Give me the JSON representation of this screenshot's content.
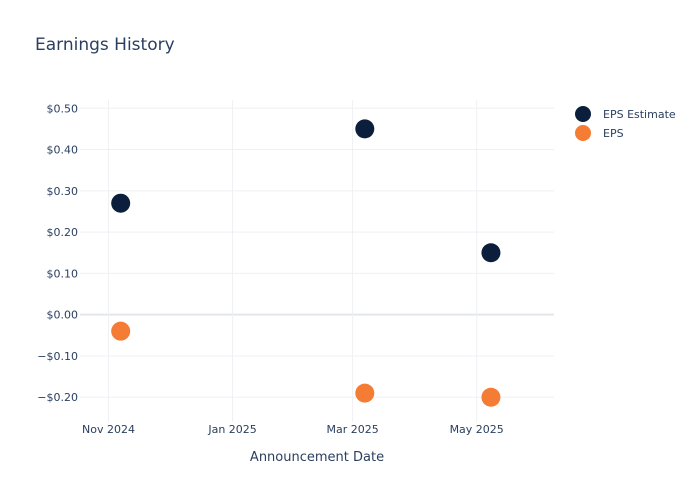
{
  "chart_data": {
    "type": "scatter",
    "title": "Earnings History",
    "xlabel": "Announcement Date",
    "ylabel": "",
    "x_axis": {
      "type": "date",
      "range": [
        "2024-10-18",
        "2025-06-08"
      ],
      "ticks": [
        {
          "date": "2024-11-01",
          "label": "Nov 2024"
        },
        {
          "date": "2025-01-01",
          "label": "Jan 2025"
        },
        {
          "date": "2025-03-01",
          "label": "Mar 2025"
        },
        {
          "date": "2025-05-01",
          "label": "May 2025"
        }
      ]
    },
    "y_axis": {
      "range": [
        -0.26,
        0.52
      ],
      "ticks": [
        {
          "value": 0.5,
          "label": "$0.50"
        },
        {
          "value": 0.4,
          "label": "$0.40"
        },
        {
          "value": 0.3,
          "label": "$0.30"
        },
        {
          "value": 0.2,
          "label": "$0.20"
        },
        {
          "value": 0.1,
          "label": "$0.10"
        },
        {
          "value": 0.0,
          "label": "$0.00"
        },
        {
          "value": -0.1,
          "label": "−$0.10"
        },
        {
          "value": -0.2,
          "label": "−$0.20"
        }
      ]
    },
    "grid": true,
    "legend_position": "top-right",
    "series": [
      {
        "name": "EPS Estimate",
        "color": "#0b1f3d",
        "points": [
          {
            "x": "2024-11-07",
            "y": 0.27
          },
          {
            "x": "2025-03-07",
            "y": 0.45
          },
          {
            "x": "2025-05-08",
            "y": 0.15
          }
        ]
      },
      {
        "name": "EPS",
        "color": "#f47c35",
        "points": [
          {
            "x": "2024-11-07",
            "y": -0.04
          },
          {
            "x": "2025-03-07",
            "y": -0.19
          },
          {
            "x": "2025-05-08",
            "y": -0.2
          }
        ]
      }
    ]
  }
}
